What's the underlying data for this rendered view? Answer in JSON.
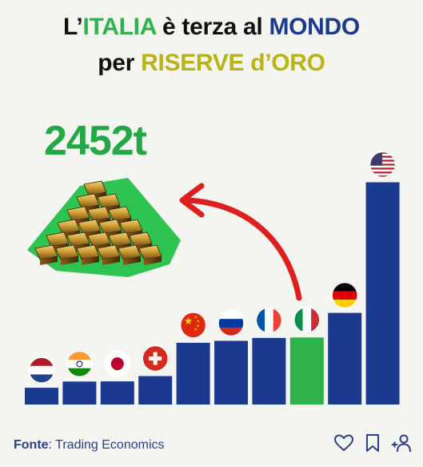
{
  "title": {
    "line1_a": "L’",
    "line1_b": "ITALIA",
    "line1_c": " è terza al ",
    "line1_d": "MONDO",
    "line2_a": "per ",
    "line2_b": "RISERVE d’ORO"
  },
  "highlight_value": "2452t",
  "colors": {
    "bar": "#1b3a8f",
    "bar_highlight": "#2db34a",
    "accent_green": "#2db34a",
    "accent_gold": "#b8b414",
    "arrow": "#e01e1e",
    "background": "#f4f4f1"
  },
  "chart_data": {
    "type": "bar",
    "unit": "t",
    "highlight": "Italy",
    "categories": [
      "Netherlands",
      "India",
      "Japan",
      "Switzerland",
      "China",
      "Russia",
      "France",
      "Italy",
      "Germany",
      "USA"
    ],
    "flag_icons": [
      "netherlands-flag",
      "india-flag",
      "japan-flag",
      "switzerland-flag",
      "china-flag",
      "russia-flag",
      "france-flag",
      "italy-flag",
      "germany-flag",
      "usa-flag"
    ],
    "values": [
      612,
      840,
      846,
      1040,
      2260,
      2330,
      2437,
      2452,
      3352,
      8133
    ],
    "ylim": [
      0,
      8500
    ],
    "grid": false,
    "legend": "none"
  },
  "footer": {
    "source_label": "Fonte",
    "source_sep": ": ",
    "source_text": "Trading Economics",
    "icons": [
      "heart-icon",
      "bookmark-icon",
      "add-user-icon"
    ]
  }
}
